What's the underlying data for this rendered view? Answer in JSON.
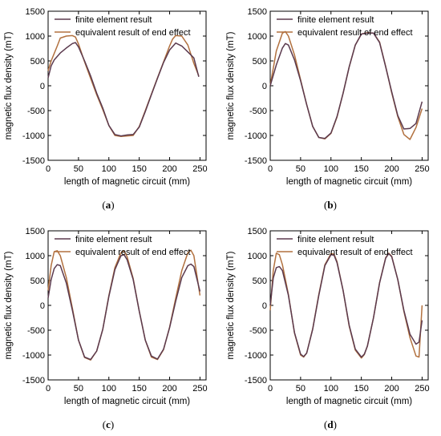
{
  "legend": {
    "fe_label": "finite element result",
    "eq_label": "equivalent result of end effect"
  },
  "colors": {
    "fe": "#5b3a4e",
    "eq": "#b2713f",
    "axis": "#000000"
  },
  "axis_labels": {
    "x": "length of magnetic circuit (mm)",
    "y": "magnetic flux density (mT)"
  },
  "chart_data": [
    {
      "type": "line",
      "caption": "a",
      "xlabel": "length of magnetic circuit (mm)",
      "ylabel": "magnetic flux density (mT)",
      "xlim": [
        0,
        260
      ],
      "ylim": [
        -1500,
        1500
      ],
      "xticks": [
        0,
        50,
        100,
        150,
        200,
        250
      ],
      "yticks": [
        -1500,
        -1000,
        -500,
        0,
        500,
        1000,
        1500
      ],
      "legend_position": "top-left",
      "series": [
        {
          "name": "finite element result",
          "x": [
            0,
            5,
            10,
            20,
            30,
            40,
            45,
            50,
            60,
            70,
            80,
            90,
            100,
            110,
            120,
            130,
            140,
            150,
            160,
            170,
            180,
            190,
            200,
            210,
            220,
            230,
            240,
            248
          ],
          "y": [
            160,
            400,
            520,
            660,
            760,
            850,
            870,
            780,
            500,
            200,
            -150,
            -450,
            -800,
            -980,
            -1010,
            -990,
            -980,
            -830,
            -520,
            -180,
            150,
            470,
            720,
            860,
            800,
            680,
            560,
            180
          ]
        },
        {
          "name": "equivalent result of end effect",
          "x": [
            0,
            5,
            10,
            15,
            20,
            30,
            40,
            45,
            50,
            60,
            70,
            80,
            90,
            100,
            110,
            120,
            130,
            140,
            150,
            160,
            170,
            180,
            190,
            200,
            205,
            210,
            220,
            230,
            240,
            248
          ],
          "y": [
            300,
            500,
            650,
            800,
            960,
            1000,
            1010,
            980,
            840,
            480,
            150,
            -180,
            -480,
            -800,
            -1000,
            -1020,
            -1010,
            -1000,
            -820,
            -500,
            -170,
            160,
            480,
            800,
            940,
            1010,
            1000,
            820,
            450,
            200
          ]
        }
      ]
    },
    {
      "type": "line",
      "caption": "b",
      "xlabel": "length of magnetic circuit (mm)",
      "ylabel": "magnetic flux density (mT)",
      "xlim": [
        0,
        260
      ],
      "ylim": [
        -1500,
        1500
      ],
      "xticks": [
        0,
        50,
        100,
        150,
        200,
        250
      ],
      "yticks": [
        -1500,
        -1000,
        -500,
        0,
        500,
        1000,
        1500
      ],
      "legend_position": "top-left",
      "series": [
        {
          "name": "finite element result",
          "x": [
            0,
            10,
            20,
            25,
            30,
            40,
            50,
            60,
            70,
            80,
            90,
            100,
            110,
            120,
            130,
            140,
            150,
            160,
            170,
            180,
            190,
            200,
            210,
            220,
            230,
            240,
            250
          ],
          "y": [
            0,
            420,
            760,
            850,
            820,
            520,
            100,
            -380,
            -820,
            -1040,
            -1060,
            -950,
            -620,
            -150,
            380,
            820,
            1040,
            1060,
            1060,
            870,
            380,
            -120,
            -600,
            -870,
            -860,
            -760,
            -320
          ]
        },
        {
          "name": "equivalent result of end effect",
          "x": [
            0,
            10,
            20,
            25,
            30,
            40,
            50,
            60,
            70,
            80,
            90,
            100,
            110,
            120,
            130,
            140,
            150,
            160,
            170,
            180,
            190,
            200,
            210,
            220,
            230,
            240,
            250
          ],
          "y": [
            0,
            700,
            1060,
            1090,
            1000,
            620,
            120,
            -380,
            -820,
            -1040,
            -1070,
            -960,
            -630,
            -150,
            380,
            820,
            1040,
            1070,
            1060,
            880,
            390,
            -140,
            -620,
            -980,
            -1080,
            -840,
            -460
          ]
        }
      ]
    },
    {
      "type": "line",
      "caption": "c",
      "xlabel": "length of magnetic circuit (mm)",
      "ylabel": "magnetic flux density (mT)",
      "xlim": [
        0,
        260
      ],
      "ylim": [
        -1500,
        1500
      ],
      "xticks": [
        0,
        50,
        100,
        150,
        200,
        250
      ],
      "yticks": [
        -1500,
        -1000,
        -500,
        0,
        500,
        1000,
        1500
      ],
      "legend_position": "top-left",
      "series": [
        {
          "name": "finite element result",
          "x": [
            0,
            5,
            10,
            15,
            20,
            30,
            40,
            50,
            60,
            70,
            80,
            90,
            100,
            110,
            120,
            125,
            130,
            140,
            150,
            160,
            170,
            180,
            190,
            200,
            210,
            220,
            230,
            235,
            240,
            250
          ],
          "y": [
            150,
            520,
            740,
            820,
            800,
            450,
            -100,
            -700,
            -1040,
            -1090,
            -920,
            -480,
            180,
            720,
            1000,
            1020,
            920,
            520,
            -120,
            -700,
            -1020,
            -1080,
            -880,
            -450,
            80,
            560,
            800,
            830,
            780,
            280
          ]
        },
        {
          "name": "equivalent result of end effect",
          "x": [
            0,
            5,
            10,
            15,
            20,
            30,
            40,
            50,
            60,
            70,
            80,
            90,
            100,
            110,
            120,
            125,
            130,
            140,
            150,
            160,
            170,
            180,
            190,
            200,
            210,
            220,
            230,
            235,
            240,
            250
          ],
          "y": [
            300,
            800,
            1080,
            1100,
            1000,
            560,
            -60,
            -700,
            -1050,
            -1100,
            -920,
            -480,
            200,
            760,
            1060,
            1100,
            980,
            540,
            -120,
            -700,
            -1040,
            -1090,
            -890,
            -440,
            140,
            700,
            1060,
            1110,
            1000,
            200
          ]
        }
      ]
    },
    {
      "type": "line",
      "caption": "d",
      "xlabel": "length of magnetic circuit (mm)",
      "ylabel": "magnetic flux density (mT)",
      "xlim": [
        0,
        260
      ],
      "ylim": [
        -1500,
        1500
      ],
      "xticks": [
        0,
        50,
        100,
        150,
        200,
        250
      ],
      "yticks": [
        -1500,
        -1000,
        -500,
        0,
        500,
        1000,
        1500
      ],
      "legend_position": "top-left",
      "series": [
        {
          "name": "finite element result",
          "x": [
            0,
            5,
            10,
            15,
            20,
            30,
            40,
            50,
            55,
            60,
            70,
            80,
            90,
            100,
            105,
            110,
            120,
            130,
            140,
            150,
            155,
            160,
            170,
            180,
            190,
            195,
            200,
            210,
            220,
            230,
            240,
            245,
            250
          ],
          "y": [
            0,
            550,
            760,
            780,
            700,
            200,
            -550,
            -980,
            -1030,
            -960,
            -480,
            200,
            800,
            1020,
            1010,
            860,
            300,
            -400,
            -880,
            -1040,
            -980,
            -820,
            -250,
            450,
            950,
            1040,
            980,
            520,
            -100,
            -580,
            -780,
            -740,
            -300
          ]
        },
        {
          "name": "equivalent result of end effect",
          "x": [
            0,
            5,
            10,
            15,
            20,
            30,
            40,
            50,
            55,
            60,
            70,
            80,
            90,
            100,
            105,
            110,
            120,
            130,
            140,
            150,
            155,
            160,
            170,
            180,
            190,
            195,
            200,
            210,
            220,
            230,
            240,
            245,
            250
          ],
          "y": [
            -100,
            700,
            1050,
            1020,
            820,
            220,
            -560,
            -1000,
            -1040,
            -960,
            -470,
            220,
            820,
            1040,
            1030,
            880,
            300,
            -420,
            -900,
            -1060,
            -990,
            -820,
            -250,
            460,
            960,
            1050,
            990,
            520,
            -120,
            -650,
            -1020,
            -1040,
            0
          ]
        }
      ]
    }
  ]
}
